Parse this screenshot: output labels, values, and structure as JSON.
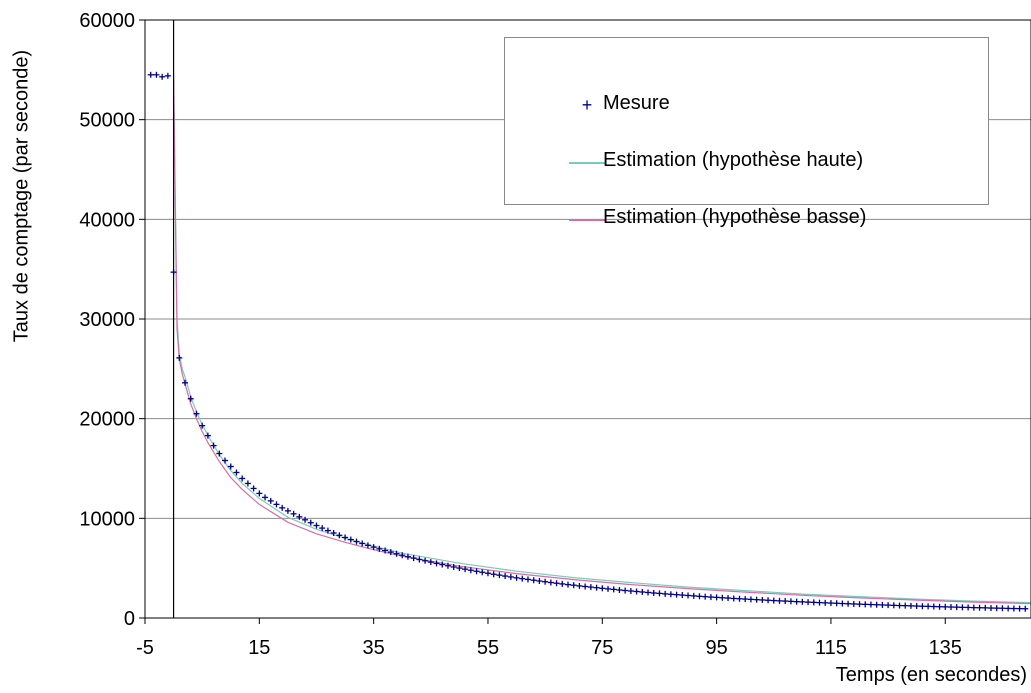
{
  "chart_data": {
    "type": "scatter",
    "title": "",
    "xlabel": "Temps (en secondes)",
    "ylabel": "Taux de comptage (par seconde)",
    "xlim": [
      -5,
      150
    ],
    "ylim": [
      0,
      60000
    ],
    "x_ticks": [
      "-5",
      "15",
      "35",
      "55",
      "75",
      "95",
      "115",
      "135"
    ],
    "y_ticks": [
      "0",
      "10000",
      "20000",
      "30000",
      "40000",
      "50000",
      "60000"
    ],
    "grid": "horizontal",
    "vertical_marker_x": 0,
    "legend_position": "top-right",
    "series": [
      {
        "name": "Mesure",
        "style": "markers-plus",
        "color": "#000080",
        "x": [
          -4,
          -3,
          -2,
          -1,
          0,
          1,
          2,
          3,
          4,
          5,
          6,
          7,
          8,
          9,
          10,
          11,
          12,
          13,
          14,
          15,
          16,
          17,
          18,
          19,
          20,
          21,
          22,
          23,
          24,
          25,
          26,
          27,
          28,
          29,
          30,
          31,
          32,
          33,
          34,
          35,
          36,
          37,
          38,
          39,
          40,
          41,
          42,
          43,
          44,
          45,
          46,
          47,
          48,
          49,
          50,
          51,
          52,
          53,
          54,
          55,
          56,
          57,
          58,
          59,
          60,
          61,
          62,
          63,
          64,
          65,
          66,
          67,
          68,
          69,
          70,
          71,
          72,
          73,
          74,
          75,
          76,
          77,
          78,
          79,
          80,
          81,
          82,
          83,
          84,
          85,
          86,
          87,
          88,
          89,
          90,
          91,
          92,
          93,
          94,
          95,
          96,
          97,
          98,
          99,
          100,
          101,
          102,
          103,
          104,
          105,
          106,
          107,
          108,
          109,
          110,
          111,
          112,
          113,
          114,
          115,
          116,
          117,
          118,
          119,
          120,
          121,
          122,
          123,
          124,
          125,
          126,
          127,
          128,
          129,
          130,
          131,
          132,
          133,
          134,
          135,
          136,
          137,
          138,
          139,
          140,
          141,
          142,
          143,
          144,
          145,
          146,
          147,
          148,
          149
        ],
        "y": [
          54500,
          54500,
          54300,
          54400,
          34700,
          26100,
          23600,
          22000,
          20500,
          19300,
          18300,
          17300,
          16500,
          15800,
          15200,
          14600,
          14000,
          13500,
          13000,
          12500,
          12100,
          11750,
          11400,
          11050,
          10750,
          10450,
          10150,
          9850,
          9560,
          9280,
          9020,
          8770,
          8530,
          8300,
          8080,
          7870,
          7670,
          7480,
          7290,
          7110,
          6940,
          6770,
          6610,
          6450,
          6300,
          6150,
          6010,
          5870,
          5740,
          5610,
          5480,
          5360,
          5240,
          5120,
          5010,
          4900,
          4790,
          4690,
          4590,
          4490,
          4390,
          4300,
          4210,
          4120,
          4030,
          3950,
          3870,
          3790,
          3710,
          3640,
          3560,
          3490,
          3420,
          3350,
          3290,
          3220,
          3160,
          3100,
          3040,
          2980,
          2920,
          2870,
          2810,
          2760,
          2710,
          2660,
          2610,
          2560,
          2510,
          2470,
          2420,
          2380,
          2340,
          2300,
          2260,
          2220,
          2180,
          2140,
          2100,
          2070,
          2030,
          2000,
          1960,
          1930,
          1900,
          1870,
          1840,
          1810,
          1780,
          1750,
          1720,
          1700,
          1670,
          1640,
          1620,
          1590,
          1570,
          1540,
          1520,
          1500,
          1480,
          1450,
          1430,
          1410,
          1390,
          1370,
          1350,
          1330,
          1310,
          1290,
          1270,
          1250,
          1240,
          1220,
          1200,
          1180,
          1170,
          1150,
          1130,
          1120,
          1100,
          1090,
          1070,
          1060,
          1040,
          1030,
          1020,
          1000,
          990,
          980,
          960,
          950,
          940,
          930
        ]
      },
      {
        "name": "Estimation (hypothèse haute)",
        "style": "line",
        "color": "#80c8b8",
        "x": [
          0,
          0.3,
          0.6,
          1,
          1.5,
          2,
          3,
          4,
          5,
          6,
          8,
          10,
          12,
          15,
          20,
          25,
          30,
          35,
          40,
          50,
          60,
          70,
          80,
          90,
          100,
          110,
          120,
          130,
          140,
          150
        ],
        "y": [
          54500,
          42000,
          30000,
          26500,
          25000,
          24200,
          22200,
          20700,
          19400,
          18300,
          16400,
          14800,
          13500,
          12000,
          10100,
          8900,
          8000,
          7200,
          6500,
          5500,
          4700,
          4050,
          3550,
          3100,
          2750,
          2400,
          2150,
          1900,
          1700,
          1550
        ]
      },
      {
        "name": "Estimation (hypothèse basse)",
        "style": "line",
        "color": "#d070a8",
        "x": [
          0,
          0.3,
          0.6,
          1,
          1.5,
          2,
          3,
          4,
          5,
          6,
          8,
          10,
          12,
          15,
          20,
          25,
          30,
          35,
          40,
          50,
          60,
          70,
          80,
          90,
          100,
          110,
          120,
          130,
          140,
          150
        ],
        "y": [
          54000,
          41000,
          29000,
          26000,
          24500,
          23500,
          21500,
          20000,
          18700,
          17600,
          15700,
          14100,
          12900,
          11400,
          9600,
          8450,
          7600,
          6850,
          6200,
          5200,
          4450,
          3850,
          3350,
          2950,
          2600,
          2280,
          2020,
          1800,
          1600,
          1430
        ]
      }
    ]
  }
}
